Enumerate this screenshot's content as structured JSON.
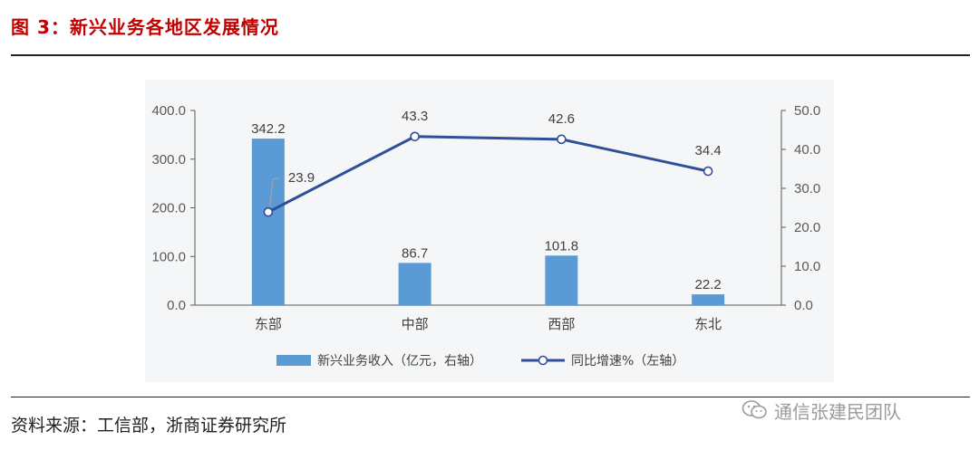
{
  "header": {
    "title": "图 3：新兴业务各地区发展情况"
  },
  "source": {
    "text": "资料来源：工信部，浙商证券研究所"
  },
  "watermark": {
    "text": "通信张建民团队",
    "icon": "wechat-icon"
  },
  "colors": {
    "bar": "#5b9bd5",
    "line": "#2f4f9a",
    "title": "#c00000"
  },
  "chart_data": {
    "type": "bar",
    "categories": [
      "东部",
      "中部",
      "西部",
      "东北"
    ],
    "series": [
      {
        "name": "新兴业务收入（亿元，右轴）",
        "type": "bar",
        "values": [
          342.2,
          86.7,
          101.8,
          22.2
        ]
      },
      {
        "name": "同比增速%（左轴）",
        "type": "line",
        "values": [
          23.9,
          43.3,
          42.6,
          34.4
        ]
      }
    ],
    "left_axis": {
      "range": [
        0,
        400
      ],
      "ticks": [
        "0.0",
        "100.0",
        "200.0",
        "300.0",
        "400.0"
      ]
    },
    "right_axis": {
      "range": [
        0,
        50
      ],
      "ticks": [
        "0.0",
        "10.0",
        "20.0",
        "30.0",
        "40.0",
        "50.0"
      ]
    },
    "bar_labels": [
      "342.2",
      "86.7",
      "101.8",
      "22.2"
    ],
    "line_labels": [
      "23.9",
      "43.3",
      "42.6",
      "34.4"
    ],
    "legend_position": "bottom",
    "grid": false
  }
}
